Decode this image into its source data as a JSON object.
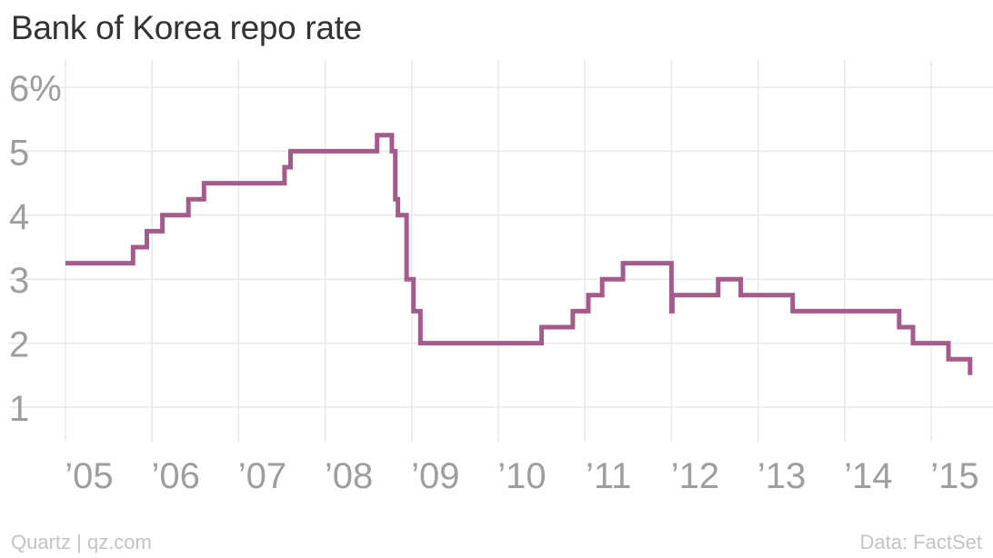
{
  "chart_data": {
    "type": "line",
    "title": "Bank of Korea repo rate",
    "xlabel": "",
    "ylabel": "",
    "step": true,
    "xlim": [
      2005.0,
      2015.5
    ],
    "ylim": [
      0.5,
      6.2
    ],
    "yticks": [
      {
        "value": 6,
        "label": "6%"
      },
      {
        "value": 5,
        "label": "5"
      },
      {
        "value": 4,
        "label": "4"
      },
      {
        "value": 3,
        "label": "3"
      },
      {
        "value": 2,
        "label": "2"
      },
      {
        "value": 1,
        "label": "1"
      }
    ],
    "xticks": [
      {
        "value": 2005,
        "label": "’05"
      },
      {
        "value": 2006,
        "label": "’06"
      },
      {
        "value": 2007,
        "label": "’07"
      },
      {
        "value": 2008,
        "label": "’08"
      },
      {
        "value": 2009,
        "label": "’09"
      },
      {
        "value": 2010,
        "label": "’10"
      },
      {
        "value": 2011,
        "label": "’11"
      },
      {
        "value": 2012,
        "label": "’12"
      },
      {
        "value": 2013,
        "label": "’13"
      },
      {
        "value": 2014,
        "label": "’14"
      },
      {
        "value": 2015,
        "label": "’15"
      }
    ],
    "grid": true,
    "legend": "none",
    "series": [
      {
        "color": "#a55a8c",
        "points": [
          {
            "x": 2005.0,
            "y": 3.25
          },
          {
            "x": 2005.78,
            "y": 3.5
          },
          {
            "x": 2005.94,
            "y": 3.75
          },
          {
            "x": 2006.12,
            "y": 4.0
          },
          {
            "x": 2006.42,
            "y": 4.25
          },
          {
            "x": 2006.6,
            "y": 4.5
          },
          {
            "x": 2007.53,
            "y": 4.75
          },
          {
            "x": 2007.6,
            "y": 5.0
          },
          {
            "x": 2008.6,
            "y": 5.25
          },
          {
            "x": 2008.77,
            "y": 5.0
          },
          {
            "x": 2008.81,
            "y": 4.25
          },
          {
            "x": 2008.84,
            "y": 4.0
          },
          {
            "x": 2008.94,
            "y": 3.0
          },
          {
            "x": 2009.02,
            "y": 2.5
          },
          {
            "x": 2009.1,
            "y": 2.0
          },
          {
            "x": 2010.5,
            "y": 2.25
          },
          {
            "x": 2010.86,
            "y": 2.5
          },
          {
            "x": 2011.04,
            "y": 2.75
          },
          {
            "x": 2011.2,
            "y": 3.0
          },
          {
            "x": 2011.44,
            "y": 3.25
          },
          {
            "x": 2012.0,
            "y": 2.5
          },
          {
            "x": 2012.01,
            "y": 2.75
          },
          {
            "x": 2012.54,
            "y": 3.0
          },
          {
            "x": 2012.8,
            "y": 2.75
          },
          {
            "x": 2013.4,
            "y": 2.5
          },
          {
            "x": 2014.63,
            "y": 2.25
          },
          {
            "x": 2014.79,
            "y": 2.0
          },
          {
            "x": 2015.2,
            "y": 1.75
          },
          {
            "x": 2015.45,
            "y": 1.5
          }
        ]
      }
    ]
  },
  "footer": {
    "source_left": "Quartz | qz.com",
    "source_right": "Data: FactSet"
  },
  "colors": {
    "line": "#a55a8c",
    "grid": "#e8e8e8",
    "tick_text": "#9e9e9e",
    "title_text": "#333333",
    "footer_text": "#c4c4c4"
  }
}
